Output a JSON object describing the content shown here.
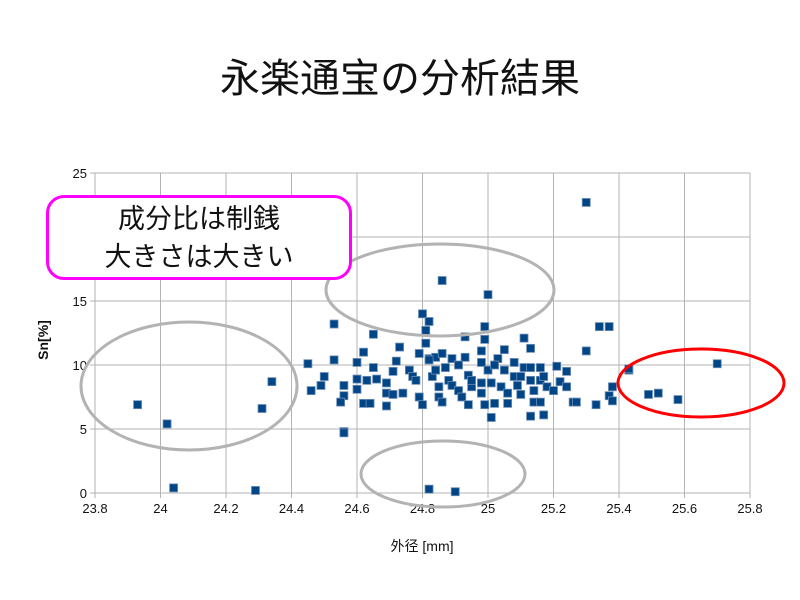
{
  "title": "永楽通宝の分析結果",
  "callout": {
    "line1": "成分比は制銭",
    "line2": "大きさは大きい"
  },
  "colors": {
    "marker": "#004586",
    "grid": "#b3b3b3",
    "callout": "#ff00ff",
    "highlight": "#ff0000",
    "ellipse": "#b3b3b3"
  },
  "chart_data": {
    "type": "scatter",
    "title": "永楽通宝の分析結果",
    "xlabel": "外径 [mm]",
    "ylabel": "Sn[%]",
    "xlim": [
      23.8,
      25.8
    ],
    "ylim": [
      0,
      25
    ],
    "xticks": [
      "23.8",
      "24",
      "24.2",
      "24.4",
      "24.6",
      "24.8",
      "25",
      "25.2",
      "25.4",
      "25.6",
      "25.8"
    ],
    "yticks": [
      "0",
      "5",
      "10",
      "15",
      "20",
      "25"
    ],
    "grid": true,
    "legend": "none",
    "points": [
      [
        23.93,
        6.9
      ],
      [
        24.02,
        5.4
      ],
      [
        24.04,
        0.4
      ],
      [
        24.29,
        0.2
      ],
      [
        24.31,
        6.6
      ],
      [
        24.34,
        8.7
      ],
      [
        25.3,
        22.7
      ],
      [
        24.86,
        16.6
      ],
      [
        25.0,
        15.5
      ],
      [
        24.82,
        0.3
      ],
      [
        24.9,
        0.1
      ],
      [
        24.56,
        4.8
      ],
      [
        25.01,
        5.9
      ],
      [
        25.7,
        10.1
      ],
      [
        25.58,
        7.3
      ],
      [
        25.52,
        7.8
      ],
      [
        25.49,
        7.7
      ],
      [
        25.43,
        9.6
      ],
      [
        24.8,
        14.0
      ],
      [
        24.82,
        13.4
      ],
      [
        24.53,
        13.2
      ],
      [
        24.81,
        12.7
      ],
      [
        24.65,
        12.4
      ],
      [
        24.99,
        13.0
      ],
      [
        24.93,
        12.2
      ],
      [
        24.99,
        12.0
      ],
      [
        25.11,
        12.1
      ],
      [
        25.34,
        13.0
      ],
      [
        25.37,
        13.0
      ],
      [
        24.81,
        11.7
      ],
      [
        24.73,
        11.4
      ],
      [
        24.62,
        11.0
      ],
      [
        24.79,
        10.9
      ],
      [
        24.98,
        11.1
      ],
      [
        25.05,
        11.2
      ],
      [
        25.13,
        11.3
      ],
      [
        25.3,
        11.1
      ],
      [
        24.45,
        10.1
      ],
      [
        24.53,
        10.4
      ],
      [
        24.6,
        10.2
      ],
      [
        24.72,
        10.3
      ],
      [
        24.82,
        10.5
      ],
      [
        24.84,
        10.6
      ],
      [
        24.86,
        10.9
      ],
      [
        24.89,
        10.5
      ],
      [
        24.93,
        10.6
      ],
      [
        24.98,
        10.2
      ],
      [
        25.03,
        10.5
      ],
      [
        25.08,
        10.2
      ],
      [
        25.11,
        9.8
      ],
      [
        25.13,
        9.8
      ],
      [
        25.16,
        9.8
      ],
      [
        25.21,
        9.9
      ],
      [
        25.24,
        9.5
      ],
      [
        25.43,
        9.7
      ],
      [
        24.5,
        9.1
      ],
      [
        24.49,
        8.4
      ],
      [
        24.46,
        8.0
      ],
      [
        24.56,
        8.4
      ],
      [
        24.56,
        7.6
      ],
      [
        24.55,
        7.1
      ],
      [
        24.6,
        8.9
      ],
      [
        24.6,
        8.1
      ],
      [
        24.63,
        8.8
      ],
      [
        24.65,
        9.8
      ],
      [
        24.66,
        8.9
      ],
      [
        24.62,
        7.0
      ],
      [
        24.64,
        7.0
      ],
      [
        24.69,
        6.8
      ],
      [
        24.69,
        7.8
      ],
      [
        24.69,
        8.6
      ],
      [
        24.71,
        9.5
      ],
      [
        24.71,
        7.7
      ],
      [
        24.74,
        7.8
      ],
      [
        24.76,
        9.6
      ],
      [
        24.77,
        9.1
      ],
      [
        24.78,
        8.8
      ],
      [
        24.79,
        7.5
      ],
      [
        24.8,
        6.9
      ],
      [
        24.82,
        10.4
      ],
      [
        24.83,
        9.1
      ],
      [
        24.84,
        9.6
      ],
      [
        24.85,
        8.3
      ],
      [
        24.85,
        7.5
      ],
      [
        24.86,
        7.1
      ],
      [
        24.87,
        9.8
      ],
      [
        24.88,
        8.8
      ],
      [
        24.89,
        8.4
      ],
      [
        24.91,
        10.0
      ],
      [
        24.91,
        8.0
      ],
      [
        24.92,
        7.5
      ],
      [
        24.94,
        9.2
      ],
      [
        24.95,
        8.3
      ],
      [
        24.94,
        6.9
      ],
      [
        24.95,
        8.8
      ],
      [
        24.98,
        8.6
      ],
      [
        24.98,
        7.8
      ],
      [
        24.99,
        6.9
      ],
      [
        25.0,
        9.6
      ],
      [
        25.01,
        8.6
      ],
      [
        25.02,
        10.0
      ],
      [
        25.02,
        7.0
      ],
      [
        25.04,
        8.3
      ],
      [
        25.05,
        9.6
      ],
      [
        25.06,
        7.8
      ],
      [
        25.06,
        7.0
      ],
      [
        25.08,
        9.1
      ],
      [
        25.09,
        8.4
      ],
      [
        25.1,
        9.1
      ],
      [
        25.1,
        7.7
      ],
      [
        25.13,
        8.8
      ],
      [
        25.14,
        8.0
      ],
      [
        25.14,
        7.1
      ],
      [
        25.16,
        8.8
      ],
      [
        25.16,
        7.1
      ],
      [
        25.17,
        9.1
      ],
      [
        25.18,
        8.3
      ],
      [
        25.2,
        8.0
      ],
      [
        25.22,
        8.7
      ],
      [
        25.24,
        8.3
      ],
      [
        25.26,
        7.1
      ],
      [
        25.27,
        7.1
      ],
      [
        25.33,
        6.9
      ],
      [
        25.38,
        8.3
      ],
      [
        25.37,
        7.6
      ],
      [
        25.38,
        7.2
      ],
      [
        25.13,
        6.0
      ],
      [
        25.17,
        6.1
      ],
      [
        24.56,
        4.7
      ]
    ]
  }
}
